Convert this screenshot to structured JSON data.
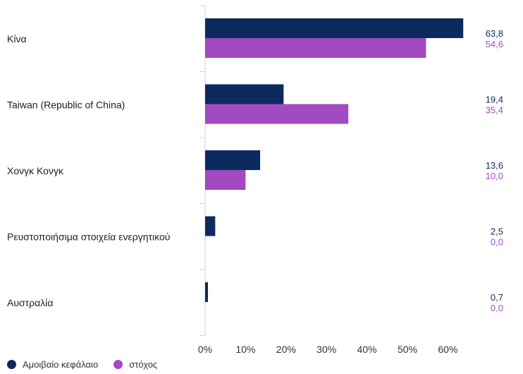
{
  "chart_data": {
    "type": "bar",
    "orientation": "horizontal",
    "categories": [
      "Κίνα",
      "Taiwan (Republic of China)",
      "Χονγκ Κονγκ",
      "Ρευστοποιήσιμα στοιχεία ενεργητικού",
      "Αυστραλία"
    ],
    "series": [
      {
        "name": "Αμοιβαίο κεφάλαιο",
        "color": "#0d2a5e",
        "values": [
          63.8,
          19.4,
          13.6,
          2.5,
          0.7
        ],
        "value_labels": [
          "63,8",
          "19,4",
          "13,6",
          "2,5",
          "0,7"
        ]
      },
      {
        "name": "στόχος",
        "color": "#a24ac0",
        "values": [
          54.6,
          35.4,
          10.0,
          0.0,
          0.0
        ],
        "value_labels": [
          "54,6",
          "35,4",
          "10,0",
          "0,0",
          "0,0"
        ]
      }
    ],
    "x_ticks": [
      "0%",
      "10%",
      "20%",
      "30%",
      "40%",
      "50%",
      "60%"
    ],
    "xlim": [
      0,
      70
    ],
    "grid": false,
    "legend_position": "bottom-left"
  }
}
